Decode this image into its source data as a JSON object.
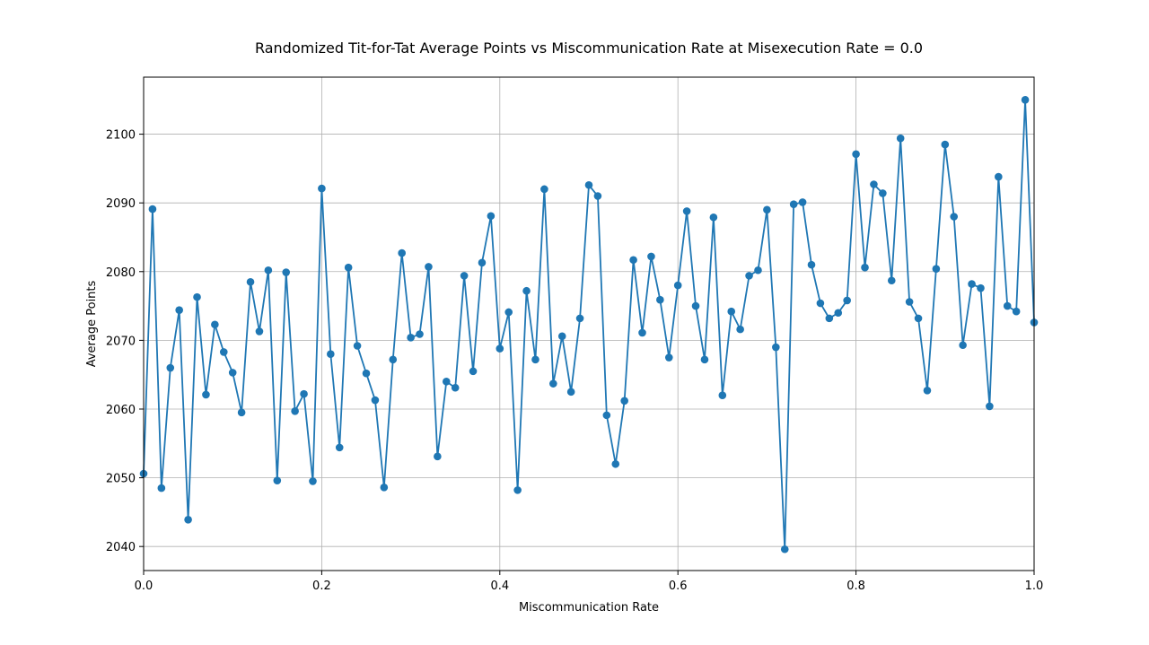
{
  "chart_data": {
    "type": "line",
    "title": "Randomized Tit-for-Tat Average Points vs Miscommunication Rate at Misexecution Rate = 0.0",
    "xlabel": "Miscommunication Rate",
    "ylabel": "Average Points",
    "xlim": [
      0.0,
      1.0
    ],
    "ylim": [
      2036.5,
      2108.3
    ],
    "xticks": [
      0.0,
      0.2,
      0.4,
      0.6,
      0.8,
      1.0
    ],
    "xtick_labels": [
      "0.0",
      "0.2",
      "0.4",
      "0.6",
      "0.8",
      "1.0"
    ],
    "yticks": [
      2040,
      2050,
      2060,
      2070,
      2080,
      2090,
      2100
    ],
    "ytick_labels": [
      "2040",
      "2050",
      "2060",
      "2070",
      "2080",
      "2090",
      "2100"
    ],
    "grid": true,
    "color": "#1f77b4",
    "marker": "circle",
    "x": [
      0.0,
      0.01,
      0.02,
      0.03,
      0.04,
      0.05,
      0.06,
      0.07,
      0.08,
      0.09,
      0.1,
      0.11,
      0.12,
      0.13,
      0.14,
      0.15,
      0.16,
      0.17,
      0.18,
      0.19,
      0.2,
      0.21,
      0.22,
      0.23,
      0.24,
      0.25,
      0.26,
      0.27,
      0.28,
      0.29,
      0.3,
      0.31,
      0.32,
      0.33,
      0.34,
      0.35,
      0.36,
      0.37,
      0.38,
      0.39,
      0.4,
      0.41,
      0.42,
      0.43,
      0.44,
      0.45,
      0.46,
      0.47,
      0.48,
      0.49,
      0.5,
      0.51,
      0.52,
      0.53,
      0.54,
      0.55,
      0.56,
      0.57,
      0.58,
      0.59,
      0.6,
      0.61,
      0.62,
      0.63,
      0.64,
      0.65,
      0.66,
      0.67,
      0.68,
      0.69,
      0.7,
      0.71,
      0.72,
      0.73,
      0.74,
      0.75,
      0.76,
      0.77,
      0.78,
      0.79,
      0.8,
      0.81,
      0.82,
      0.83,
      0.84,
      0.85,
      0.86,
      0.87,
      0.88,
      0.89,
      0.9,
      0.91,
      0.92,
      0.93,
      0.94,
      0.95,
      0.96,
      0.97,
      0.98,
      0.99,
      1.0
    ],
    "y": [
      2050.6,
      2089.1,
      2048.5,
      2066.0,
      2074.4,
      2043.9,
      2076.3,
      2062.1,
      2072.3,
      2068.3,
      2065.3,
      2059.5,
      2078.5,
      2071.3,
      2080.2,
      2049.6,
      2079.9,
      2059.7,
      2062.2,
      2049.5,
      2092.1,
      2068.0,
      2054.4,
      2080.6,
      2069.2,
      2065.2,
      2061.3,
      2048.6,
      2067.2,
      2082.7,
      2070.4,
      2070.9,
      2080.7,
      2053.1,
      2064.0,
      2063.1,
      2079.4,
      2065.5,
      2081.3,
      2088.1,
      2068.8,
      2074.1,
      2048.2,
      2077.2,
      2067.2,
      2092.0,
      2063.7,
      2070.6,
      2062.5,
      2073.2,
      2092.6,
      2091.0,
      2059.1,
      2052.0,
      2061.2,
      2081.7,
      2071.1,
      2082.2,
      2075.9,
      2067.5,
      2078.0,
      2088.8,
      2075.0,
      2067.2,
      2087.9,
      2062.0,
      2074.2,
      2071.6,
      2079.4,
      2080.2,
      2089.0,
      2069.0,
      2039.6,
      2089.8,
      2090.1,
      2081.0,
      2075.4,
      2073.2,
      2074.0,
      2075.8,
      2097.1,
      2080.6,
      2092.7,
      2091.4,
      2078.7,
      2099.4,
      2075.6,
      2073.2,
      2062.7,
      2080.4,
      2098.5,
      2088.0,
      2069.3,
      2078.2,
      2077.6,
      2060.4,
      2093.8,
      2075.0,
      2074.2,
      2105.0,
      2072.6
    ]
  }
}
